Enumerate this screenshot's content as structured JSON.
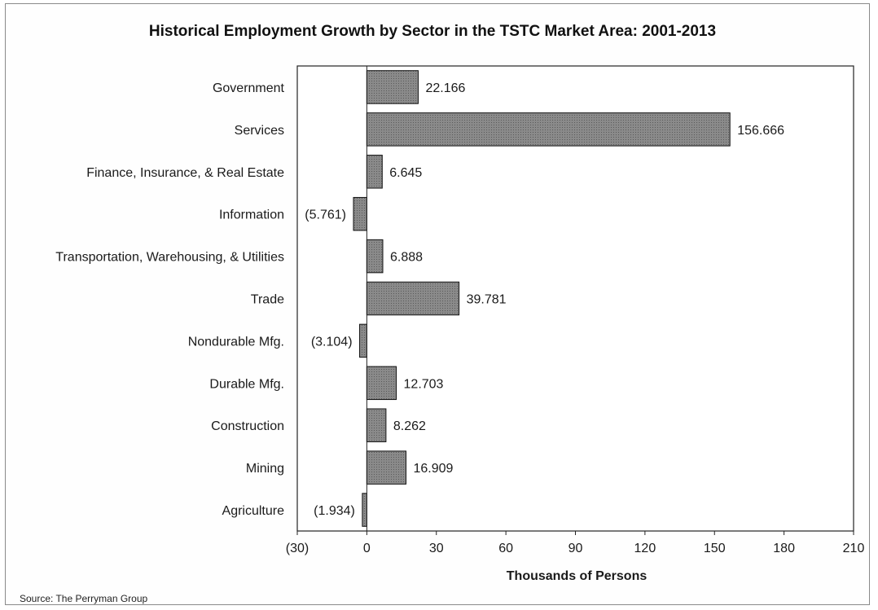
{
  "chart_data": {
    "type": "bar",
    "orientation": "horizontal",
    "title": "Historical Employment Growth by Sector in the TSTC Market Area: 2001-2013",
    "xlabel": "Thousands of Persons",
    "ylabel": "",
    "xlim": [
      -30,
      210
    ],
    "xticks": [
      -30,
      0,
      30,
      60,
      90,
      120,
      150,
      180,
      210
    ],
    "xtick_labels": [
      "(30)",
      "0",
      "30",
      "60",
      "90",
      "120",
      "150",
      "180",
      "210"
    ],
    "categories": [
      "Government",
      "Services",
      "Finance, Insurance, & Real Estate",
      "Information",
      "Transportation, Warehousing, & Utilities",
      "Trade",
      "Nondurable Mfg.",
      "Durable Mfg.",
      "Construction",
      "Mining",
      "Agriculture"
    ],
    "values": [
      22.166,
      156.666,
      6.645,
      -5.761,
      6.888,
      39.781,
      -3.104,
      12.703,
      8.262,
      16.909,
      -1.934
    ],
    "value_labels": [
      "22.166",
      "156.666",
      "6.645",
      "(5.761)",
      "6.888",
      "39.781",
      "(3.104)",
      "12.703",
      "8.262",
      "16.909",
      "(1.934)"
    ],
    "bar_color": "#7a7a7a",
    "grid": false,
    "legend": "none"
  },
  "source": "Source: The Perryman Group"
}
